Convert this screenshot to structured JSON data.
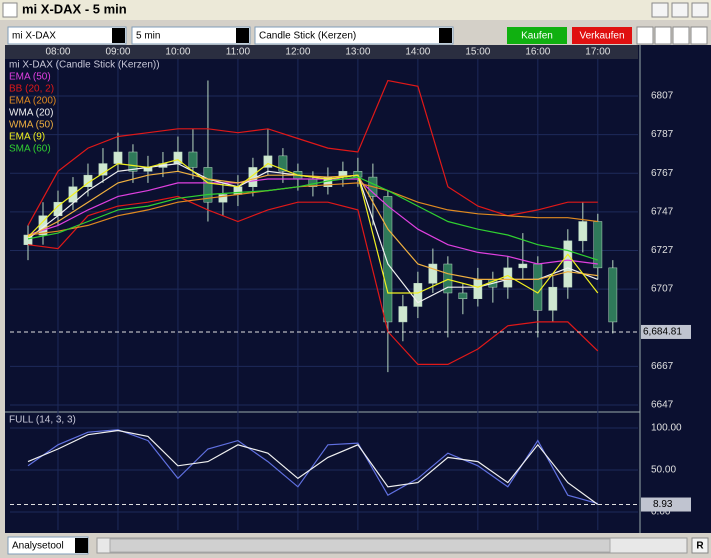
{
  "window": {
    "title": "mi X-DAX - 5 min"
  },
  "toolbar": {
    "instrument": "mi X-DAX",
    "interval": "5 min",
    "chart_style": "Candle Stick (Kerzen)",
    "buy": "Kaufen",
    "sell": "Verkaufen"
  },
  "footer": {
    "tool": "Analysetool",
    "button": "R"
  },
  "chart_data": [
    {
      "type": "candlestick",
      "title": "mi X-DAX (Candle Stick (Kerzen))",
      "xlim": [
        7.2,
        17.67
      ],
      "xticks": [
        {
          "value": 8,
          "label": "08:00"
        },
        {
          "value": 9,
          "label": "09:00"
        },
        {
          "value": 10,
          "label": "10:00"
        },
        {
          "value": 11,
          "label": "11:00"
        },
        {
          "value": 12,
          "label": "12:00"
        },
        {
          "value": 13,
          "label": "13:00"
        },
        {
          "value": 14,
          "label": "14:00"
        },
        {
          "value": 15,
          "label": "15:00"
        },
        {
          "value": 16,
          "label": "16:00"
        },
        {
          "value": 17,
          "label": "17:00"
        }
      ],
      "ylim": [
        6644.4,
        6833.4
      ],
      "yticks": [
        6807,
        6787,
        6767,
        6747,
        6727,
        6707,
        6667,
        6647
      ],
      "grid": true,
      "up_color": "#cfe8d0",
      "down_color": "#2f7a5a",
      "candles": {
        "x": [
          7.5,
          7.75,
          8,
          8.25,
          8.5,
          8.75,
          9,
          9.25,
          9.5,
          9.75,
          10,
          10.25,
          10.5,
          10.75,
          11,
          11.25,
          11.5,
          11.75,
          12,
          12.25,
          12.5,
          12.75,
          13,
          13.25,
          13.5,
          13.75,
          14,
          14.25,
          14.5,
          14.75,
          15,
          15.25,
          15.5,
          15.75,
          16,
          16.25,
          16.5,
          16.75,
          17,
          17.25
        ],
        "open": [
          6730,
          6735,
          6745,
          6752,
          6760,
          6766,
          6772,
          6778,
          6768,
          6770,
          6772,
          6778,
          6770,
          6752,
          6756,
          6760,
          6770,
          6776,
          6768,
          6764,
          6760,
          6765,
          6768,
          6765,
          6755,
          6690,
          6698,
          6710,
          6720,
          6705,
          6702,
          6712,
          6708,
          6718,
          6720,
          6696,
          6708,
          6732,
          6742,
          6718
        ],
        "high": [
          6740,
          6752,
          6758,
          6765,
          6772,
          6780,
          6788,
          6782,
          6776,
          6778,
          6786,
          6790,
          6815,
          6762,
          6766,
          6775,
          6790,
          6780,
          6772,
          6768,
          6770,
          6773,
          6775,
          6772,
          6758,
          6704,
          6716,
          6728,
          6724,
          6710,
          6718,
          6716,
          6724,
          6736,
          6724,
          6714,
          6738,
          6752,
          6746,
          6722
        ],
        "low": [
          6722,
          6730,
          6740,
          6748,
          6755,
          6762,
          6768,
          6762,
          6762,
          6765,
          6768,
          6764,
          6742,
          6745,
          6750,
          6755,
          6766,
          6762,
          6758,
          6755,
          6756,
          6760,
          6760,
          6740,
          6664,
          6680,
          6692,
          6705,
          6682,
          6694,
          6698,
          6700,
          6702,
          6712,
          6682,
          6690,
          6702,
          6726,
          6712,
          6684
        ],
        "close": [
          6735,
          6745,
          6752,
          6760,
          6766,
          6772,
          6778,
          6768,
          6770,
          6772,
          6778,
          6770,
          6752,
          6756,
          6760,
          6770,
          6776,
          6768,
          6764,
          6760,
          6765,
          6768,
          6765,
          6755,
          6690,
          6698,
          6710,
          6720,
          6705,
          6702,
          6712,
          6708,
          6718,
          6720,
          6696,
          6708,
          6732,
          6742,
          6718,
          6690
        ]
      },
      "overlays": {
        "x": [
          7.5,
          8,
          8.5,
          9,
          9.5,
          10,
          10.5,
          11,
          11.5,
          12,
          12.5,
          13,
          13.5,
          14,
          14.5,
          15,
          15.5,
          16,
          16.5,
          17
        ],
        "series": [
          {
            "name": "EMA (50)",
            "color": "#e040e0",
            "values": [
              6735,
              6740,
              6748,
              6755,
              6758,
              6762,
              6762,
              6762,
              6764,
              6764,
              6764,
              6764,
              6750,
              6738,
              6730,
              6726,
              6724,
              6720,
              6722,
              6720
            ]
          },
          {
            "name": "BB (20, 2)",
            "color": "#e01818",
            "upper": [
              6740,
              6768,
              6780,
              6786,
              6788,
              6790,
              6790,
              6788,
              6790,
              6785,
              6780,
              6778,
              6815,
              6812,
              6760,
              6750,
              6745,
              6748,
              6752,
              6752
            ],
            "lower": [
              6730,
              6728,
              6745,
              6750,
              6752,
              6755,
              6748,
              6742,
              6748,
              6752,
              6752,
              6748,
              6685,
              6668,
              6668,
              6676,
              6688,
              6690,
              6690,
              6675
            ]
          },
          {
            "name": "EMA (200)",
            "color": "#e08a20",
            "values": [
              6735,
              6737,
              6740,
              6745,
              6748,
              6752,
              6754,
              6756,
              6758,
              6760,
              6761,
              6762,
              6758,
              6752,
              6748,
              6746,
              6745,
              6744,
              6744,
              6742
            ]
          },
          {
            "name": "WMA (20)",
            "color": "#f0f0f0",
            "values": [
              6733,
              6745,
              6758,
              6768,
              6770,
              6772,
              6764,
              6760,
              6768,
              6766,
              6764,
              6766,
              6720,
              6700,
              6708,
              6708,
              6712,
              6712,
              6718,
              6712
            ]
          },
          {
            "name": "WMA (50)",
            "color": "#f0b040",
            "values": [
              6734,
              6742,
              6752,
              6762,
              6766,
              6768,
              6764,
              6762,
              6766,
              6766,
              6765,
              6766,
              6738,
              6720,
              6715,
              6712,
              6712,
              6712,
              6716,
              6714
            ]
          },
          {
            "name": "EMA (9)",
            "color": "#f0f020",
            "values": [
              6734,
              6750,
              6762,
              6772,
              6770,
              6774,
              6762,
              6760,
              6772,
              6766,
              6764,
              6766,
              6705,
              6705,
              6712,
              6708,
              6714,
              6705,
              6725,
              6705
            ]
          },
          {
            "name": "SMA (60)",
            "color": "#30d030",
            "values": [
              6733,
              6736,
              6742,
              6748,
              6750,
              6754,
              6756,
              6757,
              6758,
              6760,
              6763,
              6765,
              6758,
              6750,
              6742,
              6738,
              6735,
              6730,
              6727,
              6722
            ]
          }
        ]
      },
      "last": {
        "value": 6684.81,
        "label": "6,684.81"
      }
    },
    {
      "type": "line",
      "title": "FULL (14, 3, 3)",
      "xlim": [
        7.2,
        17.67
      ],
      "ylim": [
        -21.4,
        115.5
      ],
      "yticks": [
        {
          "value": 100,
          "label": "100.00"
        },
        {
          "value": 50,
          "label": "50.00"
        },
        {
          "value": 0,
          "label": "0.00"
        }
      ],
      "grid": true,
      "x": [
        7.5,
        8,
        8.5,
        9,
        9.5,
        10,
        10.5,
        11,
        11.5,
        12,
        12.5,
        13,
        13.5,
        14,
        14.5,
        15,
        15.5,
        16,
        16.5,
        17
      ],
      "series": [
        {
          "color": "#6070e0",
          "values": [
            55,
            80,
            95,
            98,
            85,
            40,
            75,
            85,
            60,
            30,
            80,
            82,
            20,
            40,
            70,
            55,
            30,
            85,
            20,
            10
          ]
        },
        {
          "color": "#f0f0f0",
          "values": [
            60,
            75,
            92,
            97,
            90,
            55,
            60,
            80,
            70,
            40,
            65,
            80,
            30,
            35,
            65,
            60,
            35,
            80,
            35,
            9
          ]
        }
      ],
      "last": 8.93
    }
  ]
}
